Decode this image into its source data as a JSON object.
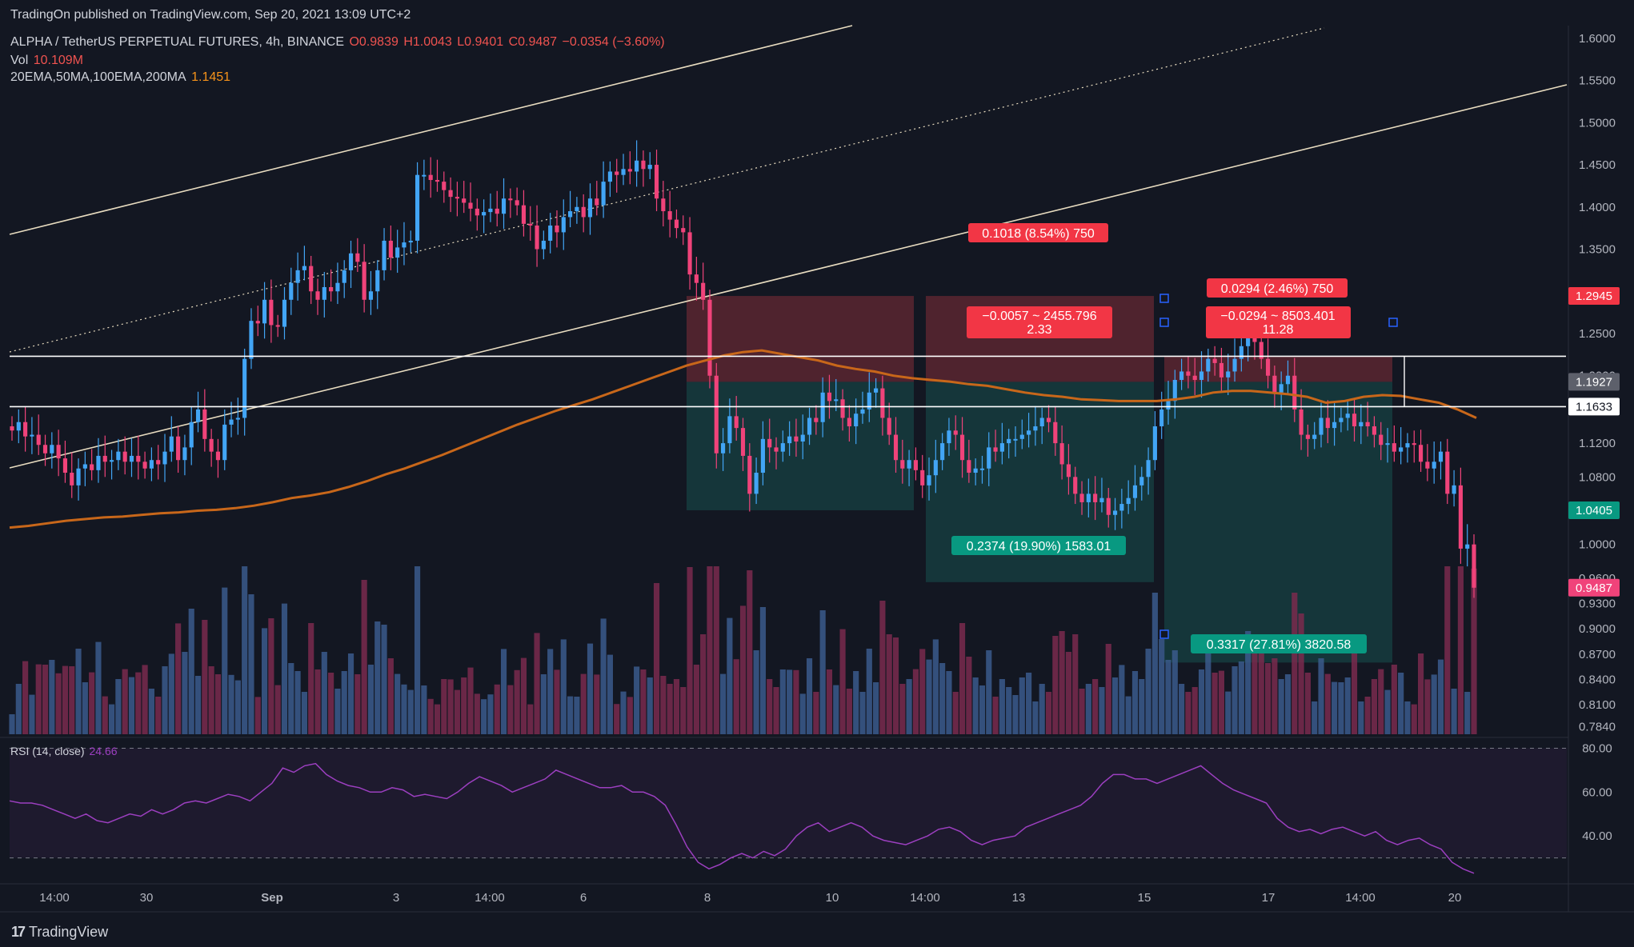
{
  "publisher_line": "TradingOn published on TradingView.com, Sep 20, 2021 13:09 UTC+2",
  "brand": "TradingView",
  "header": {
    "symbol": "ALPHA / TetherUS PERPETUAL FUTURES, 4h, BINANCE",
    "open": "O0.9839",
    "high": "H1.0043",
    "low": "L0.9401",
    "close": "C0.9487",
    "change": "−0.0354 (−3.60%)",
    "vol_label": "Vol",
    "vol_value": "10.109M",
    "ema_label": "20EMA,50MA,100EMA,200MA",
    "ema_value": "1.1451",
    "rsi_label": "RSI (14, close)",
    "rsi_value": "24.66"
  },
  "colors": {
    "background": "#131722",
    "up": "#42a5f5",
    "down": "#f0437a",
    "ema": "#c8671a",
    "rsi": "#9c3fc0",
    "loss_box": "#5a2630",
    "profit_box": "#163c3e",
    "label_red": "#f23645",
    "label_teal": "#089981"
  },
  "chart_data": [
    {
      "type": "candlestick",
      "title": "ALPHA / TetherUS PERPETUAL FUTURES, 4h, BINANCE",
      "y_ticks": [
        "1.6000",
        "1.5500",
        "1.5000",
        "1.4500",
        "1.4000",
        "1.3500",
        "1.3000",
        "1.2500",
        "1.2000",
        "1.1600",
        "1.1200",
        "1.0800",
        "1.0400",
        "1.0000",
        "0.9600",
        "0.9300",
        "0.9000",
        "0.8700",
        "0.8400",
        "0.8100",
        "0.7840"
      ],
      "ylim": [
        0.775,
        1.615
      ],
      "x_ticks": [
        "14:00",
        "30",
        "Sep",
        "3",
        "14:00",
        "6",
        "8",
        "10",
        "14:00",
        "13",
        "15",
        "17",
        "14:00",
        "20"
      ],
      "price_labels": [
        {
          "value": "1.2945",
          "color": "#f23645"
        },
        {
          "value": "1.1927",
          "color": "#5d606b"
        },
        {
          "value": "1.1633",
          "color": "#ffffff"
        },
        {
          "value": "1.0405",
          "color": "#089981"
        },
        {
          "value": "0.9487",
          "color": "#f0437a"
        }
      ],
      "hidden_tick_overlaps": [
        "1.2000",
        "0.9553"
      ],
      "horizontal_levels": [
        1.223,
        1.1633
      ],
      "close_series": [
        1.135,
        1.145,
        1.128,
        1.13,
        1.118,
        1.108,
        1.118,
        1.102,
        1.085,
        1.07,
        1.09,
        1.095,
        1.088,
        1.105,
        1.098,
        1.1,
        1.11,
        1.098,
        1.105,
        1.098,
        1.09,
        1.1,
        1.095,
        1.11,
        1.128,
        1.1,
        1.115,
        1.145,
        1.16,
        1.125,
        1.11,
        1.1,
        1.142,
        1.148,
        1.15,
        1.22,
        1.265,
        1.262,
        1.29,
        1.26,
        1.258,
        1.29,
        1.31,
        1.325,
        1.33,
        1.3,
        1.29,
        1.305,
        1.3,
        1.31,
        1.325,
        1.345,
        1.335,
        1.29,
        1.3,
        1.325,
        1.36,
        1.34,
        1.352,
        1.358,
        1.36,
        1.438,
        1.438,
        1.432,
        1.43,
        1.42,
        1.412,
        1.41,
        1.405,
        1.398,
        1.39,
        1.394,
        1.398,
        1.392,
        1.41,
        1.408,
        1.402,
        1.38,
        1.378,
        1.35,
        1.36,
        1.378,
        1.37,
        1.388,
        1.395,
        1.4,
        1.388,
        1.41,
        1.402,
        1.43,
        1.442,
        1.438,
        1.445,
        1.442,
        1.455,
        1.445,
        1.45,
        1.41,
        1.395,
        1.385,
        1.375,
        1.37,
        1.32,
        1.31,
        1.29,
        1.2,
        1.108,
        1.12,
        1.152,
        1.138,
        1.105,
        1.06,
        1.085,
        1.125,
        1.115,
        1.11,
        1.12,
        1.128,
        1.122,
        1.13,
        1.15,
        1.145,
        1.18,
        1.17,
        1.172,
        1.15,
        1.14,
        1.155,
        1.16,
        1.18,
        1.185,
        1.15,
        1.13,
        1.1,
        1.09,
        1.1,
        1.088,
        1.07,
        1.082,
        1.1,
        1.12,
        1.135,
        1.13,
        1.1,
        1.085,
        1.09,
        1.09,
        1.115,
        1.11,
        1.12,
        1.125,
        1.125,
        1.13,
        1.135,
        1.14,
        1.15,
        1.145,
        1.12,
        1.095,
        1.08,
        1.06,
        1.05,
        1.06,
        1.05,
        1.055,
        1.035,
        1.04,
        1.048,
        1.055,
        1.07,
        1.08,
        1.1,
        1.14,
        1.16,
        1.17,
        1.195,
        1.205,
        1.2,
        1.195,
        1.205,
        1.22,
        1.215,
        1.198,
        1.205,
        1.22,
        1.235,
        1.26,
        1.24,
        1.22,
        1.2,
        1.18,
        1.19,
        1.2,
        1.16,
        1.13,
        1.125,
        1.13,
        1.15,
        1.138,
        1.145,
        1.15,
        1.155,
        1.14,
        1.145,
        1.14,
        1.13,
        1.118,
        1.12,
        1.11,
        1.115,
        1.12,
        1.118,
        1.098,
        1.09,
        1.098,
        1.11,
        1.06,
        1.07,
        0.995,
        1.0,
        0.9487
      ],
      "ema_series": [
        1.02,
        1.022,
        1.025,
        1.028,
        1.03,
        1.032,
        1.033,
        1.035,
        1.037,
        1.038,
        1.04,
        1.041,
        1.043,
        1.046,
        1.05,
        1.055,
        1.058,
        1.062,
        1.068,
        1.075,
        1.083,
        1.09,
        1.098,
        1.106,
        1.115,
        1.124,
        1.133,
        1.142,
        1.15,
        1.158,
        1.165,
        1.172,
        1.18,
        1.188,
        1.196,
        1.204,
        1.212,
        1.218,
        1.224,
        1.228,
        1.23,
        1.226,
        1.222,
        1.218,
        1.212,
        1.208,
        1.205,
        1.2,
        1.197,
        1.195,
        1.193,
        1.19,
        1.188,
        1.184,
        1.18,
        1.177,
        1.175,
        1.172,
        1.171,
        1.17,
        1.17,
        1.17,
        1.172,
        1.175,
        1.18,
        1.182,
        1.182,
        1.18,
        1.178,
        1.175,
        1.168,
        1.17,
        1.175,
        1.177,
        1.176,
        1.172,
        1.168,
        1.16,
        1.15
      ],
      "rsi_ticks": [
        "80.00",
        "60.00",
        "40.00"
      ],
      "rsi_ylim": [
        20,
        82
      ],
      "rsi_series": [
        56,
        55,
        55,
        54,
        52,
        50,
        48,
        50,
        47,
        46,
        48,
        50,
        49,
        52,
        50,
        52,
        55,
        56,
        55,
        57,
        59,
        58,
        56,
        60,
        64,
        71,
        69,
        72,
        73,
        68,
        65,
        63,
        62,
        60,
        60,
        62,
        61,
        58,
        59,
        58,
        57,
        60,
        64,
        67,
        65,
        63,
        60,
        62,
        64,
        66,
        70,
        68,
        66,
        64,
        62,
        62,
        63,
        60,
        60,
        58,
        54,
        45,
        35,
        28,
        25,
        27,
        30,
        32,
        30,
        33,
        31,
        34,
        40,
        44,
        46,
        42,
        44,
        46,
        44,
        40,
        38,
        37,
        36,
        38,
        40,
        43,
        44,
        42,
        38,
        36,
        38,
        39,
        40,
        44,
        46,
        48,
        50,
        52,
        54,
        58,
        64,
        68,
        68,
        66,
        66,
        64,
        66,
        68,
        70,
        72,
        68,
        64,
        61,
        59,
        57,
        55,
        48,
        44,
        42,
        43,
        41,
        43,
        44,
        42,
        40,
        42,
        38,
        36,
        38,
        39,
        36,
        34,
        28,
        25,
        23
      ],
      "trades": [
        {
          "entry": 1.1927,
          "stop": 1.2945,
          "target": 1.0405
        },
        {
          "entry": 1.1927,
          "stop": 1.2945,
          "target": 0.9553
        },
        {
          "entry": 1.1927,
          "stop": 1.223,
          "target": 0.86
        }
      ],
      "annotations": [
        "0.1018 (8.54%) 750",
        "−0.0057 ~ 2455.796",
        "2.33",
        "0.2374 (19.90%) 1583.01",
        "0.0294 (2.46%) 750",
        "−0.0294 ~ 8503.401",
        "11.28",
        "0.3317 (27.81%) 3820.58"
      ]
    }
  ]
}
